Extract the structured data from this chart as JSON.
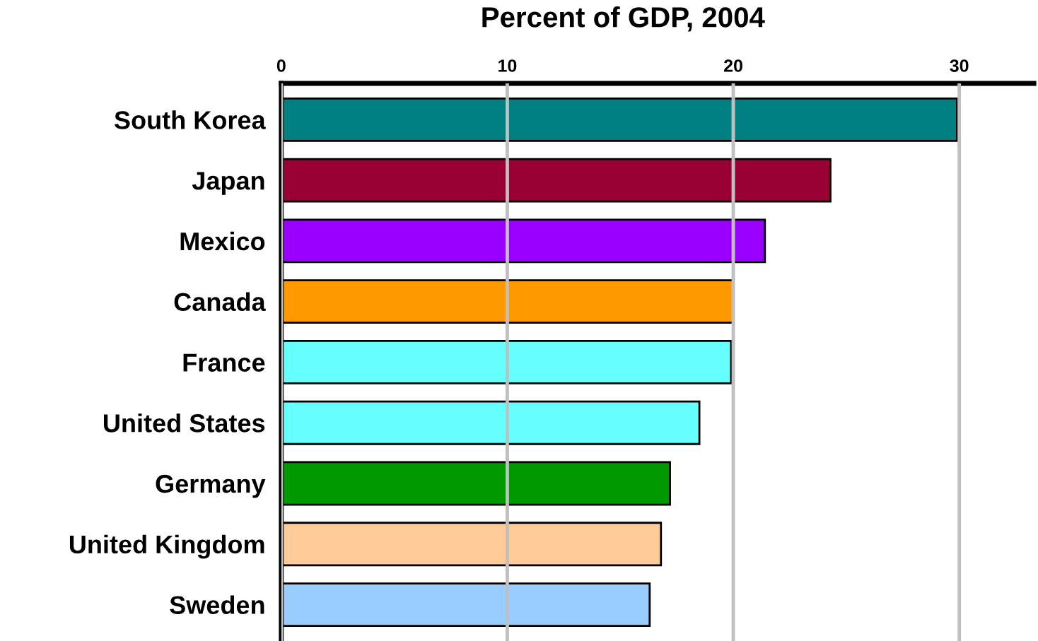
{
  "chart_data": {
    "type": "bar",
    "orientation": "horizontal",
    "title": "Percent of GDP, 2004",
    "categories": [
      "South Korea",
      "Japan",
      "Mexico",
      "Canada",
      "France",
      "United States",
      "Germany",
      "United Kingdom",
      "Sweden"
    ],
    "values": [
      29.9,
      24.3,
      21.4,
      20.0,
      19.9,
      18.5,
      17.2,
      16.8,
      16.3
    ],
    "colors": [
      "#008080",
      "#990033",
      "#9900ff",
      "#ff9900",
      "#66ffff",
      "#66ffff",
      "#009900",
      "#ffcc99",
      "#99ccff"
    ],
    "xlim": [
      0,
      33.3
    ],
    "xticks": [
      0,
      10,
      20,
      30
    ],
    "grid": "x"
  }
}
